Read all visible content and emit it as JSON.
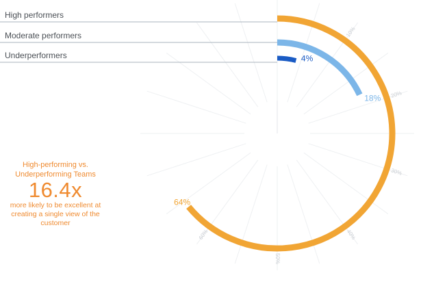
{
  "chart_data": {
    "type": "radial-bar",
    "series": [
      {
        "name": "High performers",
        "value": 64,
        "label": "64%",
        "color": "#f1a534"
      },
      {
        "name": "Moderate performers",
        "value": 18,
        "label": "18%",
        "color": "#7cb6e8"
      },
      {
        "name": "Underperformers",
        "value": 4,
        "label": "4%",
        "color": "#1a5bc4"
      }
    ],
    "axis_range": [
      0,
      100
    ],
    "ticks": [
      {
        "value": 10,
        "label": "10%"
      },
      {
        "value": 20,
        "label": "20%"
      },
      {
        "value": 30,
        "label": "30%"
      },
      {
        "value": 40,
        "label": "40%"
      },
      {
        "value": 50,
        "label": "50%"
      },
      {
        "value": 60,
        "label": "60%"
      }
    ],
    "grid": true
  },
  "callout": {
    "heading": "High-performing vs. Underperforming Teams",
    "figure": "16.4x",
    "text": "more likely to be excellent at creating a single view of the customer"
  }
}
